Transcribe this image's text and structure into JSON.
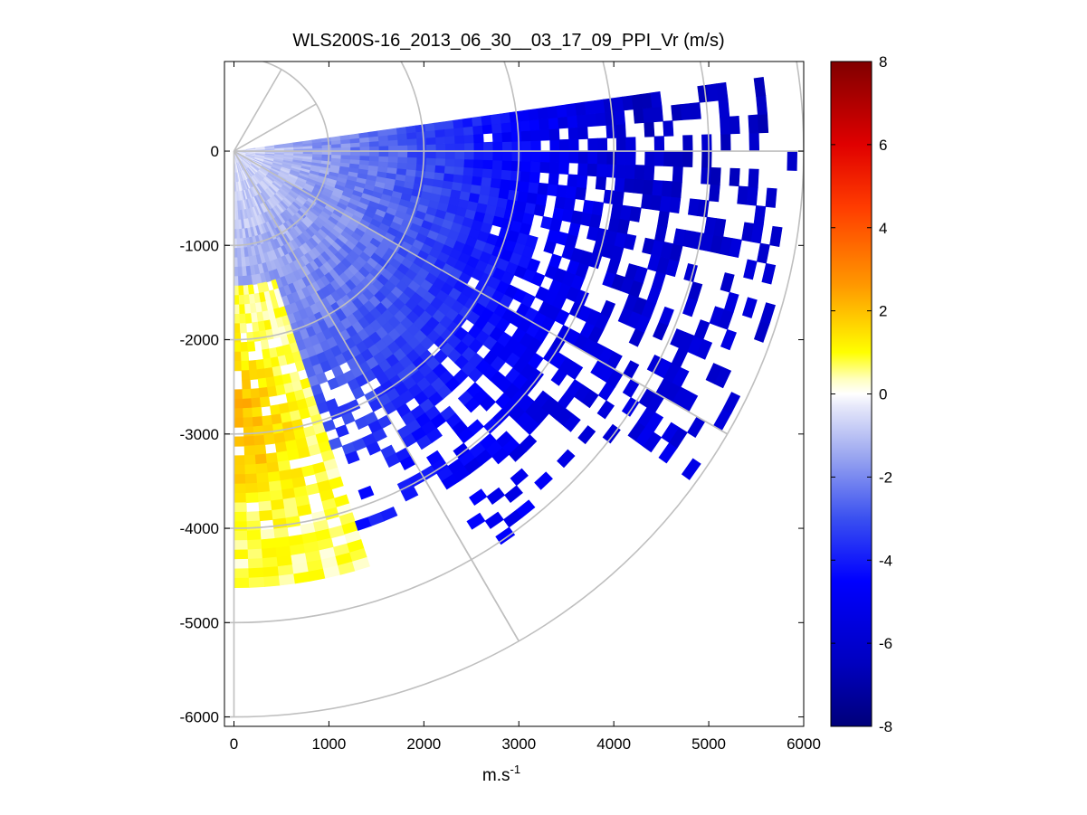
{
  "chart_data": {
    "type": "heatmap",
    "subtype": "polar-ppi-scan",
    "title": "WLS200S-16_2013_06_30__03_17_09_PPI_Vr (m/s)",
    "xlabel": "m.s",
    "xlabel_superscript": "-1",
    "ylabel": "",
    "xlim": [
      -100,
      6000
    ],
    "ylim": [
      -6100,
      950
    ],
    "xticks": [
      0,
      1000,
      2000,
      3000,
      4000,
      5000,
      6000
    ],
    "xtick_labels": [
      "0",
      "1000",
      "2000",
      "3000",
      "4000",
      "5000",
      "6000"
    ],
    "yticks": [
      0,
      -1000,
      -2000,
      -3000,
      -4000,
      -5000,
      -6000
    ],
    "ytick_labels": [
      "0",
      "-1000",
      "-2000",
      "-3000",
      "-4000",
      "-5000",
      "-6000"
    ],
    "polar_grid": {
      "range_rings_m": [
        1000,
        2000,
        3000,
        4000,
        5000,
        6000
      ],
      "spokes_deg": [
        -90,
        -60,
        -30,
        0,
        30,
        60
      ],
      "spoke_lengths_m": [
        6000,
        6000,
        6000,
        6000,
        1000,
        1000
      ],
      "segments": [
        {
          "angle_deg": -60,
          "r0": 4000,
          "r1": 6000
        },
        {
          "angle_deg": -30,
          "r0": 4000,
          "r1": 6000
        }
      ]
    },
    "scan": {
      "azimuth_range_deg": [
        -90,
        8
      ],
      "max_range_m": 5900,
      "description": "Radial velocity (Vr) sector scan; mostly negative velocities increasing in magnitude with range; positive velocities (0 to +3 m/s) near the -90 deg edge between 1.5 and 4.5 km"
    },
    "colorbar": {
      "label": "",
      "limits": [
        -8,
        8
      ],
      "ticks": [
        8,
        6,
        4,
        2,
        0,
        -2,
        -4,
        -6,
        -8
      ],
      "tick_labels": [
        "8",
        "6",
        "4",
        "2",
        "0",
        "-2",
        "-4",
        "-6",
        "-8"
      ],
      "colormap_stops": [
        {
          "value": -8,
          "color": "#00007a"
        },
        {
          "value": -6.5,
          "color": "#0000bf"
        },
        {
          "value": -4.5,
          "color": "#0000ff"
        },
        {
          "value": -3,
          "color": "#3a50f0"
        },
        {
          "value": -1.5,
          "color": "#9aa6f0"
        },
        {
          "value": -0.3,
          "color": "#e6e8fa"
        },
        {
          "value": 0,
          "color": "#ffffff"
        },
        {
          "value": 0.35,
          "color": "#ffffc0"
        },
        {
          "value": 1,
          "color": "#ffff00"
        },
        {
          "value": 2.6,
          "color": "#ff9900"
        },
        {
          "value": 4.5,
          "color": "#ff3c00"
        },
        {
          "value": 6,
          "color": "#e00000"
        },
        {
          "value": 8,
          "color": "#800000"
        }
      ]
    }
  }
}
